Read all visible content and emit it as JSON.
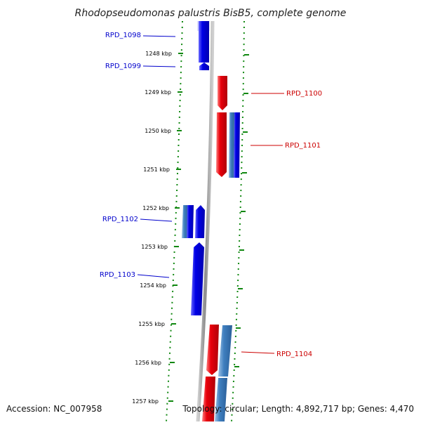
{
  "title": "Rhodopseudomonas palustris BisB5, complete genome",
  "footer": {
    "accession": "Accession: NC_007958",
    "summary": "Topology: circular; Length: 4,892,717 bp; Genes: 4,470"
  },
  "ticks": [
    "1248 kbp",
    "1249 kbp",
    "1250 kbp",
    "1251 kbp",
    "1252 kbp",
    "1253 kbp",
    "1254 kbp",
    "1255 kbp",
    "1256 kbp",
    "1257 kbp"
  ],
  "colors": {
    "backbone": "#8c8c8c",
    "forward_gene": "#e8000b",
    "reverse_gene": "#0000e6",
    "steel_gene": "#3f7fbf",
    "reverse_label": "#0000cc",
    "forward_label": "#cc0000",
    "dots": "#118811"
  },
  "gene_labels": {
    "left": [
      "RPD_1098",
      "RPD_1099",
      "RPD_1102",
      "RPD_1103"
    ],
    "right": [
      "RPD_1100",
      "RPD_1101",
      "RPD_1104"
    ]
  }
}
